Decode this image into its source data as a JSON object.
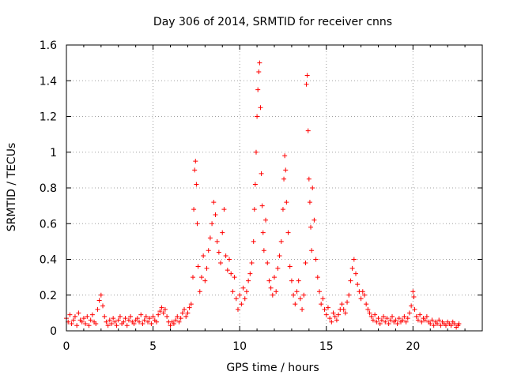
{
  "chart_data": {
    "type": "scatter",
    "title": "Day 306 of 2014, SRMTID for receiver cnns",
    "xlabel": "GPS time / hours",
    "ylabel": "SRMTID / TECUs",
    "xlim": [
      0,
      24
    ],
    "ylim": [
      0,
      1.6
    ],
    "xticks": [
      0,
      5,
      10,
      15,
      20
    ],
    "yticks": [
      0,
      0.2,
      0.4,
      0.6,
      0.8,
      1,
      1.2,
      1.4,
      1.6
    ],
    "xtick_labels": [
      "0",
      "5",
      "10",
      "15",
      "20"
    ],
    "ytick_labels": [
      "0",
      "0.2",
      "0.4",
      "0.6",
      "0.8",
      "1",
      "1.2",
      "1.4",
      "1.6"
    ],
    "grid": true,
    "marker": "+",
    "color": "#ff0000",
    "series": [
      {
        "name": "SRMTID",
        "points": [
          [
            0.0,
            0.07
          ],
          [
            0.1,
            0.05
          ],
          [
            0.2,
            0.09
          ],
          [
            0.3,
            0.04
          ],
          [
            0.4,
            0.06
          ],
          [
            0.5,
            0.08
          ],
          [
            0.6,
            0.03
          ],
          [
            0.7,
            0.1
          ],
          [
            0.8,
            0.06
          ],
          [
            0.9,
            0.05
          ],
          [
            1.0,
            0.07
          ],
          [
            1.1,
            0.04
          ],
          [
            1.2,
            0.08
          ],
          [
            1.3,
            0.03
          ],
          [
            1.4,
            0.06
          ],
          [
            1.5,
            0.09
          ],
          [
            1.6,
            0.05
          ],
          [
            1.7,
            0.04
          ],
          [
            1.8,
            0.12
          ],
          [
            1.9,
            0.17
          ],
          [
            2.0,
            0.2
          ],
          [
            2.1,
            0.14
          ],
          [
            2.2,
            0.08
          ],
          [
            2.3,
            0.05
          ],
          [
            2.4,
            0.03
          ],
          [
            2.5,
            0.06
          ],
          [
            2.6,
            0.04
          ],
          [
            2.7,
            0.07
          ],
          [
            2.8,
            0.05
          ],
          [
            2.9,
            0.03
          ],
          [
            3.0,
            0.06
          ],
          [
            3.1,
            0.08
          ],
          [
            3.2,
            0.04
          ],
          [
            3.3,
            0.05
          ],
          [
            3.4,
            0.07
          ],
          [
            3.5,
            0.03
          ],
          [
            3.6,
            0.06
          ],
          [
            3.7,
            0.08
          ],
          [
            3.8,
            0.05
          ],
          [
            3.9,
            0.04
          ],
          [
            4.0,
            0.06
          ],
          [
            4.1,
            0.07
          ],
          [
            4.2,
            0.05
          ],
          [
            4.3,
            0.09
          ],
          [
            4.4,
            0.04
          ],
          [
            4.5,
            0.06
          ],
          [
            4.6,
            0.08
          ],
          [
            4.7,
            0.05
          ],
          [
            4.8,
            0.07
          ],
          [
            4.9,
            0.04
          ],
          [
            5.0,
            0.08
          ],
          [
            5.1,
            0.06
          ],
          [
            5.2,
            0.05
          ],
          [
            5.3,
            0.09
          ],
          [
            5.4,
            0.11
          ],
          [
            5.5,
            0.13
          ],
          [
            5.6,
            0.1
          ],
          [
            5.7,
            0.12
          ],
          [
            5.8,
            0.08
          ],
          [
            5.9,
            0.05
          ],
          [
            6.0,
            0.03
          ],
          [
            6.1,
            0.05
          ],
          [
            6.2,
            0.04
          ],
          [
            6.3,
            0.06
          ],
          [
            6.4,
            0.08
          ],
          [
            6.5,
            0.05
          ],
          [
            6.6,
            0.07
          ],
          [
            6.7,
            0.1
          ],
          [
            6.8,
            0.12
          ],
          [
            6.9,
            0.08
          ],
          [
            7.0,
            0.1
          ],
          [
            7.1,
            0.13
          ],
          [
            7.2,
            0.15
          ],
          [
            7.3,
            0.3
          ],
          [
            7.35,
            0.68
          ],
          [
            7.4,
            0.9
          ],
          [
            7.45,
            0.95
          ],
          [
            7.5,
            0.82
          ],
          [
            7.55,
            0.6
          ],
          [
            7.6,
            0.36
          ],
          [
            7.7,
            0.22
          ],
          [
            7.8,
            0.3
          ],
          [
            7.9,
            0.42
          ],
          [
            8.0,
            0.28
          ],
          [
            8.1,
            0.35
          ],
          [
            8.2,
            0.45
          ],
          [
            8.3,
            0.52
          ],
          [
            8.4,
            0.6
          ],
          [
            8.5,
            0.72
          ],
          [
            8.6,
            0.65
          ],
          [
            8.7,
            0.5
          ],
          [
            8.8,
            0.44
          ],
          [
            8.9,
            0.38
          ],
          [
            9.0,
            0.55
          ],
          [
            9.1,
            0.68
          ],
          [
            9.2,
            0.42
          ],
          [
            9.3,
            0.34
          ],
          [
            9.4,
            0.4
          ],
          [
            9.5,
            0.32
          ],
          [
            9.6,
            0.22
          ],
          [
            9.7,
            0.3
          ],
          [
            9.8,
            0.18
          ],
          [
            9.9,
            0.12
          ],
          [
            10.0,
            0.2
          ],
          [
            10.1,
            0.15
          ],
          [
            10.2,
            0.24
          ],
          [
            10.3,
            0.18
          ],
          [
            10.4,
            0.22
          ],
          [
            10.5,
            0.28
          ],
          [
            10.6,
            0.32
          ],
          [
            10.7,
            0.38
          ],
          [
            10.8,
            0.5
          ],
          [
            10.85,
            0.68
          ],
          [
            10.9,
            0.82
          ],
          [
            10.95,
            1.0
          ],
          [
            11.0,
            1.2
          ],
          [
            11.05,
            1.35
          ],
          [
            11.1,
            1.45
          ],
          [
            11.15,
            1.5
          ],
          [
            11.2,
            1.25
          ],
          [
            11.25,
            0.88
          ],
          [
            11.3,
            0.7
          ],
          [
            11.35,
            0.55
          ],
          [
            11.4,
            0.45
          ],
          [
            11.5,
            0.62
          ],
          [
            11.6,
            0.38
          ],
          [
            11.7,
            0.28
          ],
          [
            11.8,
            0.24
          ],
          [
            11.9,
            0.2
          ],
          [
            12.0,
            0.3
          ],
          [
            12.1,
            0.22
          ],
          [
            12.2,
            0.35
          ],
          [
            12.3,
            0.42
          ],
          [
            12.4,
            0.5
          ],
          [
            12.5,
            0.68
          ],
          [
            12.55,
            0.85
          ],
          [
            12.6,
            0.98
          ],
          [
            12.65,
            0.9
          ],
          [
            12.7,
            0.72
          ],
          [
            12.8,
            0.55
          ],
          [
            12.9,
            0.36
          ],
          [
            13.0,
            0.28
          ],
          [
            13.1,
            0.2
          ],
          [
            13.2,
            0.15
          ],
          [
            13.3,
            0.22
          ],
          [
            13.4,
            0.28
          ],
          [
            13.5,
            0.18
          ],
          [
            13.6,
            0.12
          ],
          [
            13.7,
            0.2
          ],
          [
            13.8,
            0.38
          ],
          [
            13.85,
            1.38
          ],
          [
            13.9,
            1.43
          ],
          [
            13.95,
            1.12
          ],
          [
            14.0,
            0.85
          ],
          [
            14.05,
            0.72
          ],
          [
            14.1,
            0.58
          ],
          [
            14.15,
            0.45
          ],
          [
            14.2,
            0.8
          ],
          [
            14.3,
            0.62
          ],
          [
            14.4,
            0.4
          ],
          [
            14.5,
            0.3
          ],
          [
            14.6,
            0.22
          ],
          [
            14.7,
            0.15
          ],
          [
            14.8,
            0.18
          ],
          [
            14.9,
            0.12
          ],
          [
            15.0,
            0.09
          ],
          [
            15.1,
            0.13
          ],
          [
            15.2,
            0.07
          ],
          [
            15.3,
            0.05
          ],
          [
            15.4,
            0.1
          ],
          [
            15.5,
            0.08
          ],
          [
            15.6,
            0.06
          ],
          [
            15.7,
            0.09
          ],
          [
            15.8,
            0.12
          ],
          [
            15.9,
            0.15
          ],
          [
            16.0,
            0.12
          ],
          [
            16.1,
            0.1
          ],
          [
            16.2,
            0.16
          ],
          [
            16.3,
            0.2
          ],
          [
            16.4,
            0.28
          ],
          [
            16.5,
            0.35
          ],
          [
            16.6,
            0.4
          ],
          [
            16.7,
            0.32
          ],
          [
            16.8,
            0.26
          ],
          [
            16.9,
            0.22
          ],
          [
            17.0,
            0.18
          ],
          [
            17.1,
            0.22
          ],
          [
            17.2,
            0.2
          ],
          [
            17.3,
            0.15
          ],
          [
            17.4,
            0.12
          ],
          [
            17.5,
            0.1
          ],
          [
            17.6,
            0.08
          ],
          [
            17.7,
            0.06
          ],
          [
            17.8,
            0.09
          ],
          [
            17.9,
            0.05
          ],
          [
            18.0,
            0.07
          ],
          [
            18.1,
            0.04
          ],
          [
            18.2,
            0.06
          ],
          [
            18.3,
            0.08
          ],
          [
            18.4,
            0.05
          ],
          [
            18.5,
            0.07
          ],
          [
            18.6,
            0.04
          ],
          [
            18.7,
            0.06
          ],
          [
            18.8,
            0.08
          ],
          [
            18.9,
            0.05
          ],
          [
            19.0,
            0.06
          ],
          [
            19.1,
            0.04
          ],
          [
            19.2,
            0.07
          ],
          [
            19.3,
            0.05
          ],
          [
            19.4,
            0.06
          ],
          [
            19.5,
            0.08
          ],
          [
            19.6,
            0.05
          ],
          [
            19.7,
            0.07
          ],
          [
            19.8,
            0.1
          ],
          [
            19.9,
            0.14
          ],
          [
            20.0,
            0.22
          ],
          [
            20.05,
            0.19
          ],
          [
            20.1,
            0.12
          ],
          [
            20.2,
            0.08
          ],
          [
            20.3,
            0.06
          ],
          [
            20.4,
            0.09
          ],
          [
            20.5,
            0.05
          ],
          [
            20.6,
            0.07
          ],
          [
            20.7,
            0.06
          ],
          [
            20.8,
            0.08
          ],
          [
            20.9,
            0.05
          ],
          [
            21.0,
            0.04
          ],
          [
            21.1,
            0.06
          ],
          [
            21.2,
            0.03
          ],
          [
            21.3,
            0.05
          ],
          [
            21.4,
            0.04
          ],
          [
            21.5,
            0.06
          ],
          [
            21.6,
            0.03
          ],
          [
            21.7,
            0.05
          ],
          [
            21.8,
            0.04
          ],
          [
            21.9,
            0.03
          ],
          [
            22.0,
            0.05
          ],
          [
            22.1,
            0.04
          ],
          [
            22.2,
            0.03
          ],
          [
            22.3,
            0.05
          ],
          [
            22.4,
            0.04
          ],
          [
            22.5,
            0.02
          ],
          [
            22.6,
            0.03
          ],
          [
            22.65,
            0.04
          ]
        ]
      }
    ]
  }
}
